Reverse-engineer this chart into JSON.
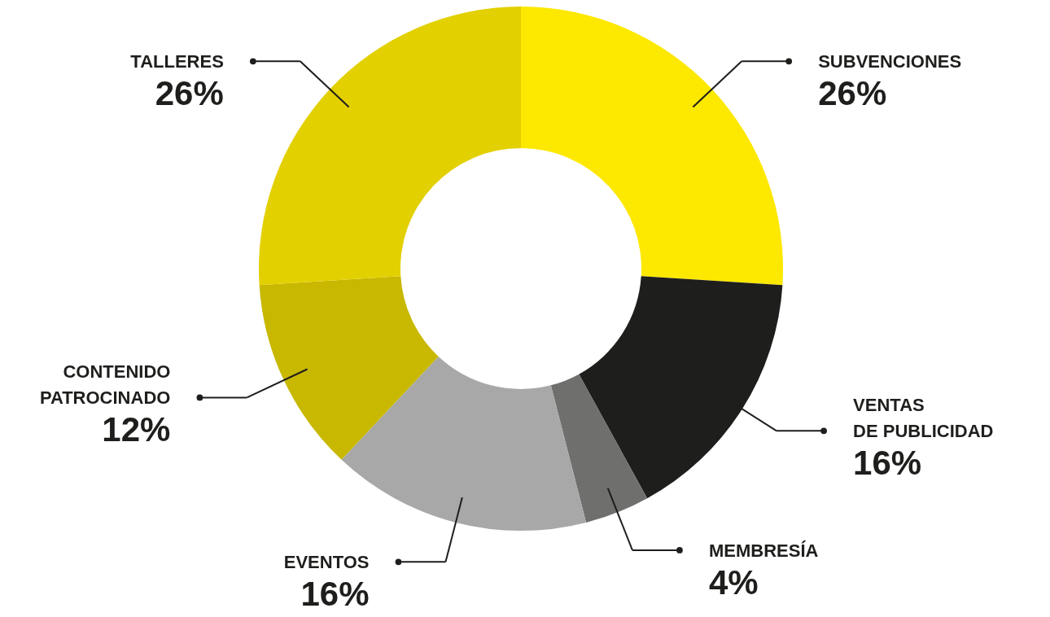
{
  "chart_data": {
    "type": "donut",
    "categories": [
      "SUBVENCIONES",
      "VENTAS\nDE PUBLICIDAD",
      "MEMBRESÍA",
      "EVENTOS",
      "CONTENIDO\nPATROCINADO",
      "TALLERES"
    ],
    "values": [
      26,
      16,
      4,
      16,
      12,
      26
    ],
    "colors": [
      "#fde800",
      "#1e1e1c",
      "#6f6f6d",
      "#a8a8a8",
      "#c8b800",
      "#e3d000"
    ],
    "value_labels": [
      "26%",
      "16%",
      "4%",
      "16%",
      "12%",
      "26%"
    ]
  }
}
